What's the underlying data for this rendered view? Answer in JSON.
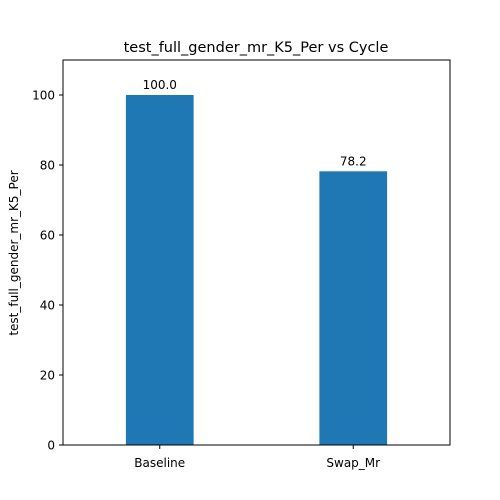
{
  "chart_data": {
    "type": "bar",
    "title": "test_full_gender_mr_K5_Per vs Cycle",
    "xlabel": "",
    "ylabel": "test_full_gender_mr_K5_Per",
    "categories": [
      "Baseline",
      "Swap_Mr"
    ],
    "values": [
      100.0,
      78.2
    ],
    "data_labels": [
      "100.0",
      "78.2"
    ],
    "ylim": [
      0,
      110
    ],
    "yticks": [
      0,
      20,
      40,
      60,
      80,
      100
    ],
    "bar_color": "#1f77b4",
    "grid": false,
    "legend": "none"
  }
}
